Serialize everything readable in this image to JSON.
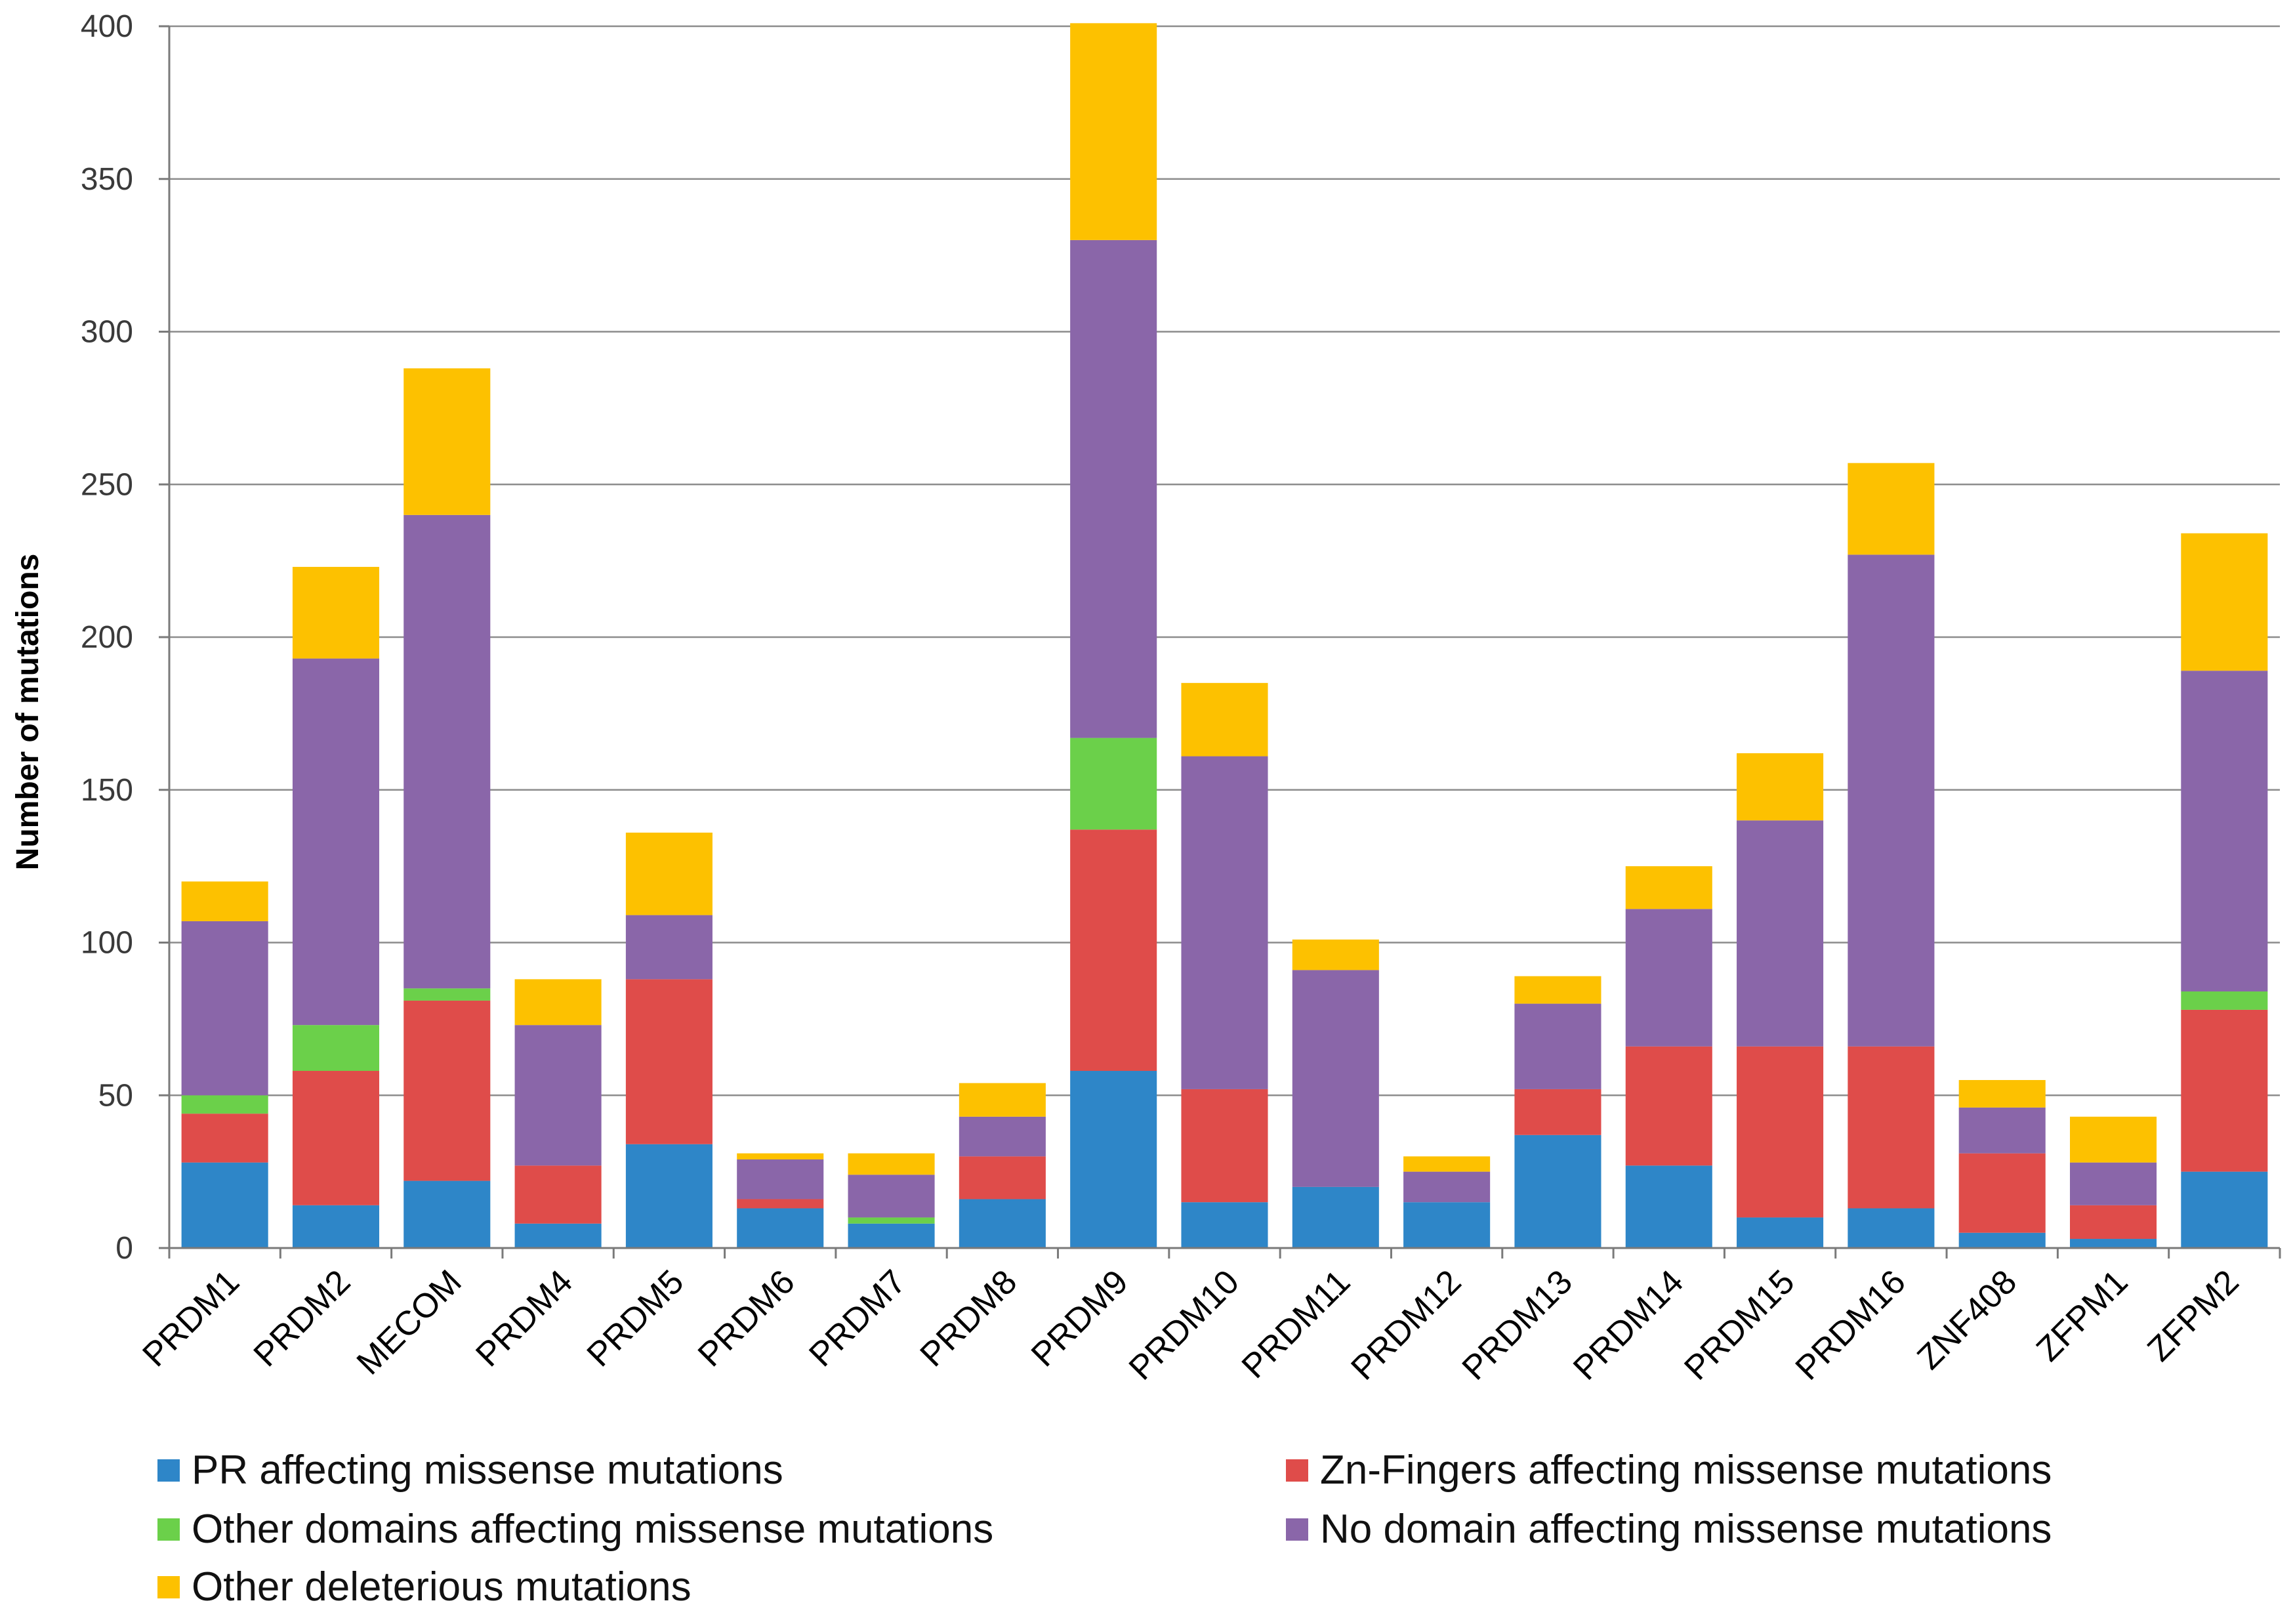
{
  "chart_data": {
    "type": "bar",
    "stacked": true,
    "title": "",
    "xlabel": "",
    "ylabel": "Number of mutations",
    "ylim": [
      0,
      400
    ],
    "yticks": [
      0,
      50,
      100,
      150,
      200,
      250,
      300,
      350,
      400
    ],
    "grid": true,
    "legend_position": "bottom",
    "categories": [
      "PRDM1",
      "PRDM2",
      "MECOM",
      "PRDM4",
      "PRDM5",
      "PRDM6",
      "PRDM7",
      "PRDM8",
      "PRDM9",
      "PRDM10",
      "PRDM11",
      "PRDM12",
      "PRDM13",
      "PRDM14",
      "PRDM15",
      "PRDM16",
      "ZNF408",
      "ZFPM1",
      "ZFPM2"
    ],
    "series": [
      {
        "name": "PR affecting missense mutations",
        "color": "#2e86c8",
        "values": [
          28,
          14,
          22,
          8,
          34,
          13,
          8,
          16,
          58,
          15,
          20,
          15,
          37,
          27,
          10,
          13,
          5,
          3,
          25
        ]
      },
      {
        "name": "Zn-Fingers affecting missense mutations",
        "color": "#df4c4a",
        "values": [
          16,
          44,
          59,
          19,
          54,
          3,
          0,
          14,
          79,
          37,
          0,
          0,
          15,
          39,
          56,
          53,
          26,
          11,
          53
        ]
      },
      {
        "name": "Other domains affecting missense mutations",
        "color": "#6bd04a",
        "values": [
          6,
          15,
          4,
          0,
          0,
          0,
          2,
          0,
          30,
          0,
          0,
          0,
          0,
          0,
          0,
          0,
          0,
          0,
          6
        ]
      },
      {
        "name": "No domain affecting missense mutations",
        "color": "#8a66a9",
        "values": [
          57,
          120,
          155,
          46,
          21,
          13,
          14,
          13,
          163,
          109,
          71,
          10,
          28,
          45,
          74,
          161,
          15,
          14,
          105
        ]
      },
      {
        "name": "Other deleterious mutations",
        "color": "#fdc100",
        "values": [
          13,
          30,
          48,
          15,
          27,
          2,
          7,
          11,
          71,
          24,
          10,
          5,
          9,
          14,
          22,
          30,
          9,
          15,
          45
        ]
      }
    ]
  }
}
